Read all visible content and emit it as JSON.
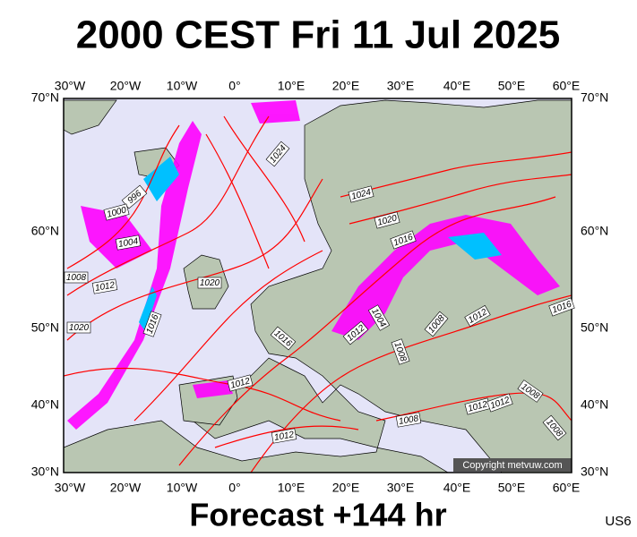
{
  "title": "2000 CEST Fri 11 Jul 2025",
  "longitude_labels": [
    "30°W",
    "20°W",
    "10°W",
    "0°",
    "10°E",
    "20°E",
    "30°E",
    "40°E",
    "50°E",
    "60°E"
  ],
  "latitude_labels": [
    "70°N",
    "60°N",
    "50°N",
    "40°N",
    "30°N"
  ],
  "isobar_labels": [
    "1024",
    "996",
    "1000",
    "1004",
    "1008",
    "1012",
    "1020",
    "1016",
    "1020",
    "1024",
    "1020",
    "1016",
    "1004",
    "1012",
    "1008",
    "1012",
    "1016",
    "1008",
    "1012",
    "1012",
    "1008",
    "1012",
    "1012",
    "1008",
    "1008",
    "1016"
  ],
  "copyright": "Copyright metvuw.com",
  "footer": "Forecast +144 hr",
  "model_code": "US6"
}
